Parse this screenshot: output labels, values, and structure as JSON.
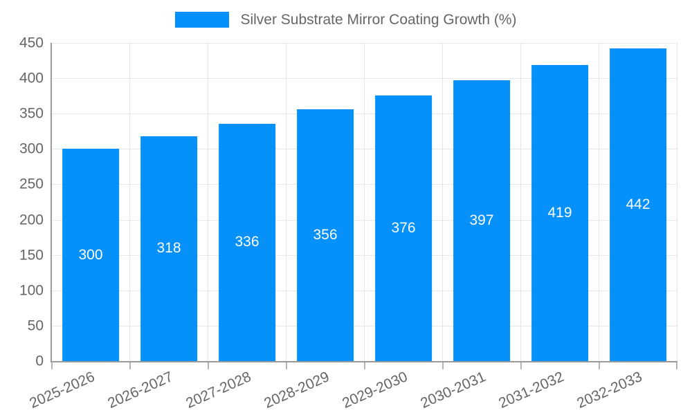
{
  "legend": {
    "label": "Silver Substrate Mirror Coating Growth (%)",
    "position": "top"
  },
  "colors": {
    "bar": "#0590fa",
    "axis_text": "#666666",
    "value_label_text": "#ffffff",
    "gridline": "#e6e6e6",
    "axis_line": "#9a9a9a",
    "background": "#ffffff"
  },
  "chart_data": {
    "type": "bar",
    "title": "Silver Substrate Mirror Coating Growth (%)",
    "categories": [
      "2025-2026",
      "2026-2027",
      "2027-2028",
      "2028-2029",
      "2029-2030",
      "2030-2031",
      "2031-2032",
      "2032-2033"
    ],
    "values": [
      300,
      318,
      336,
      356,
      376,
      397,
      419,
      442
    ],
    "value_labels_shown": [
      "300",
      "318",
      "336",
      "356",
      "376",
      "397",
      "419",
      "442"
    ],
    "xlabel": "",
    "ylabel": "",
    "ylim": [
      0,
      450
    ],
    "ytick_step": 50,
    "yticks": [
      0,
      50,
      100,
      150,
      200,
      250,
      300,
      350,
      400,
      450
    ],
    "grid": true,
    "legend_position": "top",
    "x_label_rotation_deg": -24,
    "value_label_position": "inside-center"
  }
}
